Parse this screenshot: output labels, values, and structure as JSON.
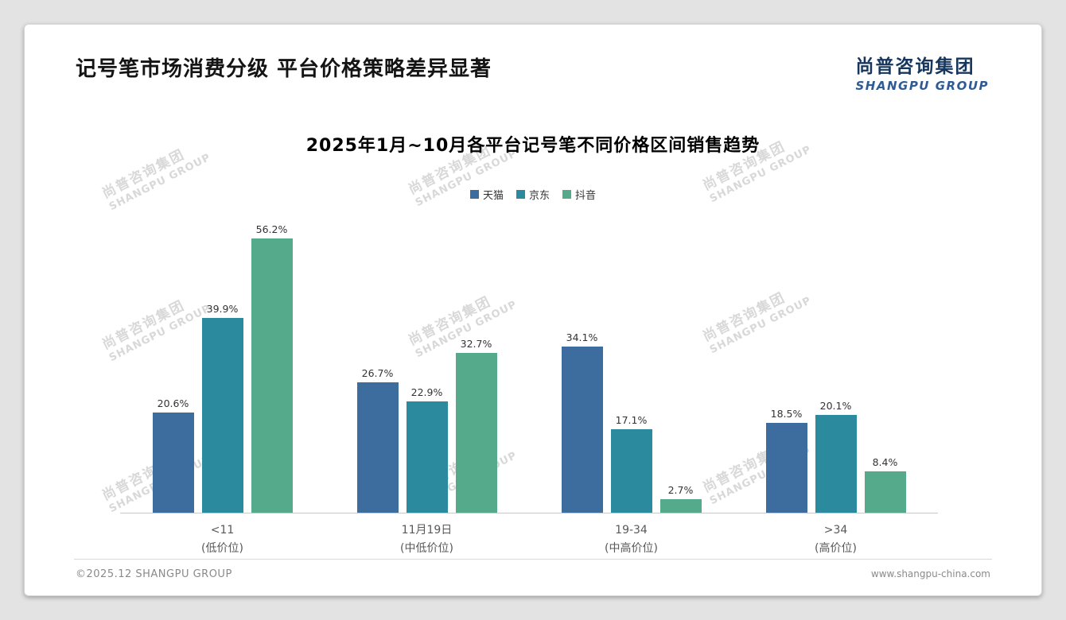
{
  "page": {
    "title": "记号笔市场消费分级 平台价格策略差异显著",
    "logo": {
      "cn": "尚普咨询集团",
      "en": "SHANGPU GROUP"
    },
    "watermark": {
      "cn": "尚普咨询集团",
      "en": "SHANGPU GROUP"
    },
    "footer": {
      "left": "©2025.12 SHANGPU GROUP",
      "right": "www.shangpu-china.com"
    }
  },
  "chart_data": {
    "type": "bar",
    "title": "2025年1月~10月各平台记号笔不同价格区间销售趋势",
    "categories": [
      "<11",
      "11月19日",
      "19-34",
      ">34"
    ],
    "category_sublabels": [
      "(低价位)",
      "(中低价位)",
      "(中高价位)",
      "(高价位)"
    ],
    "series": [
      {
        "name": "天猫",
        "color": "#3d6d9e",
        "values": [
          20.6,
          26.7,
          34.1,
          18.5
        ]
      },
      {
        "name": "京东",
        "color": "#2b8a9d",
        "values": [
          39.9,
          22.9,
          17.1,
          20.1
        ]
      },
      {
        "name": "抖音",
        "color": "#55aa8c",
        "values": [
          56.2,
          32.7,
          2.7,
          8.4
        ]
      }
    ],
    "value_suffix": "%",
    "xlabel": "",
    "ylabel": "",
    "ylim": [
      0,
      60
    ],
    "grid": false,
    "legend_position": "top",
    "data_labels": true
  }
}
